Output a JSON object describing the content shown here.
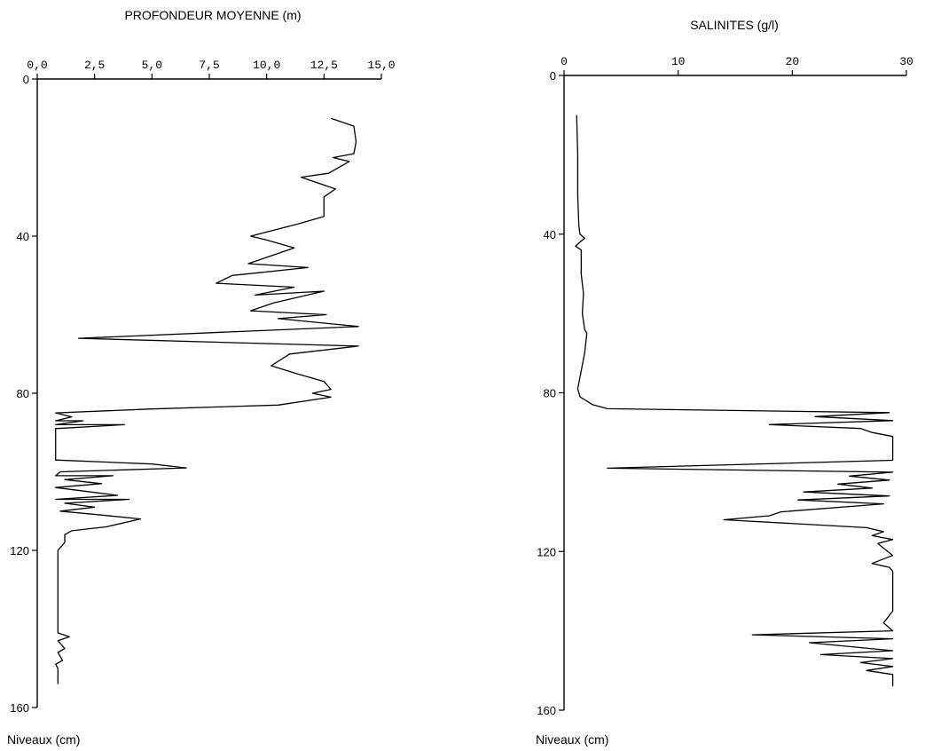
{
  "chart_data": [
    {
      "type": "line",
      "orientation": "vertical-profile",
      "x_label": "PROFONDEUR MOYENNE (m)",
      "y_label": "Niveaux (cm)",
      "xlim": [
        0,
        15
      ],
      "ylim": [
        0,
        160
      ],
      "x_ticks": [
        0,
        2.5,
        5,
        7.5,
        10,
        12.5,
        15
      ],
      "x_tick_labels": [
        "0,0",
        "2,5",
        "5,0",
        "7,5",
        "10,0",
        "12,5",
        "15,0"
      ],
      "y_ticks": [
        0,
        40,
        80,
        120,
        160
      ],
      "y_tick_labels": [
        "0",
        "40",
        "80",
        "120",
        "160"
      ],
      "x_axis_position": "top",
      "grid": false,
      "series": [
        {
          "points": [
            [
              12.8,
              10
            ],
            [
              13.8,
              12
            ],
            [
              13.9,
              16
            ],
            [
              13.8,
              19
            ],
            [
              12.9,
              20
            ],
            [
              13.6,
              21
            ],
            [
              12.7,
              24
            ],
            [
              11.5,
              25
            ],
            [
              13.0,
              28
            ],
            [
              12.5,
              30
            ],
            [
              12.5,
              35
            ],
            [
              11.3,
              37
            ],
            [
              9.3,
              40
            ],
            [
              10.0,
              41
            ],
            [
              11.2,
              43
            ],
            [
              9.2,
              47
            ],
            [
              11.8,
              48
            ],
            [
              8.5,
              50
            ],
            [
              7.8,
              52
            ],
            [
              11.2,
              53
            ],
            [
              9.5,
              55
            ],
            [
              12.5,
              54
            ],
            [
              10.3,
              57
            ],
            [
              9.3,
              59
            ],
            [
              12.6,
              60
            ],
            [
              10.5,
              61
            ],
            [
              14.0,
              63
            ],
            [
              1.8,
              66
            ],
            [
              14.0,
              68
            ],
            [
              11.0,
              70
            ],
            [
              10.2,
              73
            ],
            [
              11.3,
              75
            ],
            [
              12.5,
              77
            ],
            [
              12.8,
              79
            ],
            [
              12.0,
              80
            ],
            [
              12.8,
              81
            ],
            [
              10.5,
              83
            ],
            [
              5.0,
              84
            ],
            [
              0.8,
              85
            ],
            [
              1.5,
              86
            ],
            [
              0.8,
              87
            ],
            [
              2.0,
              87
            ],
            [
              0.8,
              88
            ],
            [
              3.8,
              88
            ],
            [
              0.8,
              89
            ],
            [
              0.8,
              97
            ],
            [
              5.0,
              98
            ],
            [
              6.5,
              99
            ],
            [
              1.0,
              100
            ],
            [
              0.8,
              101
            ],
            [
              3.3,
              101
            ],
            [
              1.2,
              102
            ],
            [
              2.8,
              103
            ],
            [
              0.8,
              104
            ],
            [
              3.5,
              106
            ],
            [
              0.8,
              107
            ],
            [
              4.0,
              107
            ],
            [
              1.2,
              108
            ],
            [
              2.5,
              109
            ],
            [
              1.0,
              110
            ],
            [
              2.8,
              111
            ],
            [
              4.5,
              112
            ],
            [
              3.0,
              114
            ],
            [
              1.5,
              115
            ],
            [
              1.2,
              116
            ],
            [
              1.2,
              118
            ],
            [
              0.9,
              120
            ],
            [
              0.9,
              141
            ],
            [
              1.4,
              142
            ],
            [
              0.9,
              143
            ],
            [
              1.2,
              145
            ],
            [
              0.9,
              146
            ],
            [
              1.1,
              148
            ],
            [
              0.8,
              149
            ],
            [
              0.9,
              150
            ],
            [
              0.9,
              154
            ]
          ]
        }
      ]
    },
    {
      "type": "line",
      "orientation": "vertical-profile",
      "x_label": "SALINITES (g/l)",
      "y_label": "Niveaux (cm)",
      "xlim": [
        0,
        30
      ],
      "ylim": [
        0,
        160
      ],
      "x_ticks": [
        0,
        10,
        20,
        30
      ],
      "x_tick_labels": [
        "0",
        "10",
        "20",
        "30"
      ],
      "y_ticks": [
        0,
        40,
        80,
        120,
        160
      ],
      "y_tick_labels": [
        "0",
        "40",
        "80",
        "120",
        "160"
      ],
      "x_axis_position": "top",
      "grid": false,
      "series": [
        {
          "points": [
            [
              1.1,
              10
            ],
            [
              1.2,
              20
            ],
            [
              1.2,
              30
            ],
            [
              1.3,
              38
            ],
            [
              1.4,
              40
            ],
            [
              1.8,
              41
            ],
            [
              1.0,
              43
            ],
            [
              1.5,
              44
            ],
            [
              1.5,
              50
            ],
            [
              1.7,
              55
            ],
            [
              1.6,
              60
            ],
            [
              1.8,
              64
            ],
            [
              2.0,
              65
            ],
            [
              1.8,
              70
            ],
            [
              1.6,
              73
            ],
            [
              1.4,
              76
            ],
            [
              1.2,
              79
            ],
            [
              1.4,
              81
            ],
            [
              2.5,
              83
            ],
            [
              3.8,
              84
            ],
            [
              28.5,
              85
            ],
            [
              22.0,
              86
            ],
            [
              28.8,
              87
            ],
            [
              18.0,
              88
            ],
            [
              26.0,
              89
            ],
            [
              27.0,
              90
            ],
            [
              28.8,
              91
            ],
            [
              28.8,
              97
            ],
            [
              3.8,
              99
            ],
            [
              28.8,
              100
            ],
            [
              25.0,
              101
            ],
            [
              28.5,
              102
            ],
            [
              24.0,
              103
            ],
            [
              27.0,
              104
            ],
            [
              21.0,
              105
            ],
            [
              28.5,
              106
            ],
            [
              20.5,
              107
            ],
            [
              28.0,
              108
            ],
            [
              19.0,
              110
            ],
            [
              18.0,
              111
            ],
            [
              14.0,
              112
            ],
            [
              26.5,
              114
            ],
            [
              28.0,
              115
            ],
            [
              27.0,
              116
            ],
            [
              28.8,
              117
            ],
            [
              27.5,
              118
            ],
            [
              28.8,
              121
            ],
            [
              27.0,
              123
            ],
            [
              28.5,
              124
            ],
            [
              28.8,
              125
            ],
            [
              28.8,
              135
            ],
            [
              28.0,
              138
            ],
            [
              28.8,
              140
            ],
            [
              16.5,
              141
            ],
            [
              28.8,
              142
            ],
            [
              21.5,
              143
            ],
            [
              28.8,
              145
            ],
            [
              22.5,
              146
            ],
            [
              28.8,
              147
            ],
            [
              26.0,
              148
            ],
            [
              28.8,
              149
            ],
            [
              26.5,
              150
            ],
            [
              28.8,
              151
            ],
            [
              28.8,
              154
            ]
          ]
        }
      ]
    }
  ]
}
